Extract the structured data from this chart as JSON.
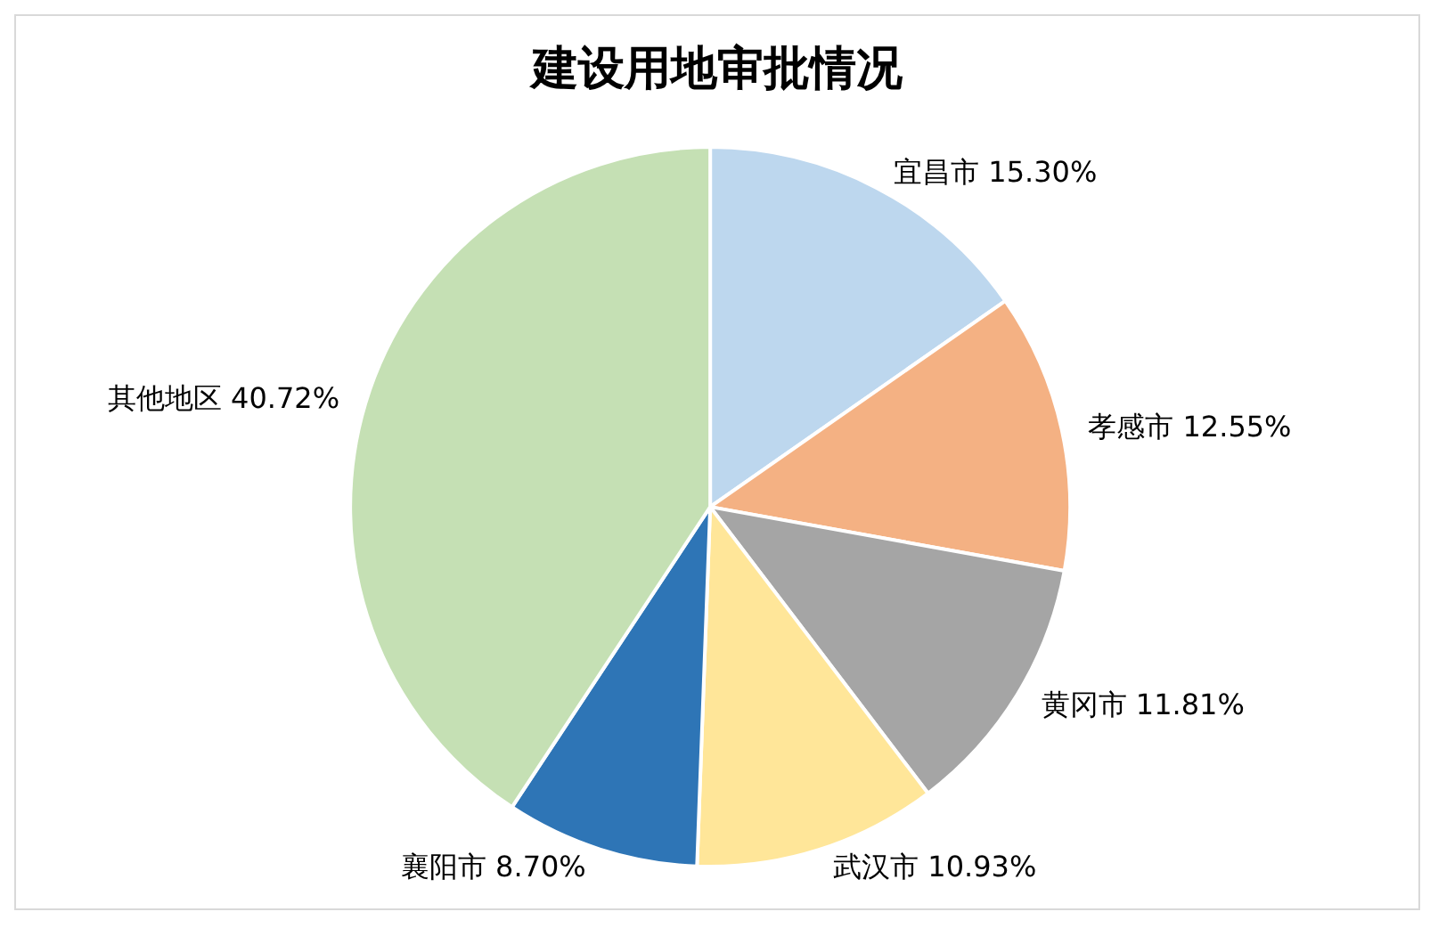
{
  "chart_data": {
    "type": "pie",
    "title": "建设用地审批情况",
    "categories": [
      "宜昌市",
      "孝感市",
      "黄冈市",
      "武汉市",
      "襄阳市",
      "其他地区"
    ],
    "values": [
      15.3,
      12.55,
      11.81,
      10.93,
      8.7,
      40.72
    ],
    "value_labels": [
      "15.30%",
      "12.55%",
      "11.81%",
      "10.93%",
      "8.70%",
      "40.72%"
    ],
    "colors": [
      "#bdd7ee",
      "#f4b183",
      "#a5a5a5",
      "#ffe699",
      "#2e75b6",
      "#c5e0b4"
    ],
    "legend": false
  }
}
